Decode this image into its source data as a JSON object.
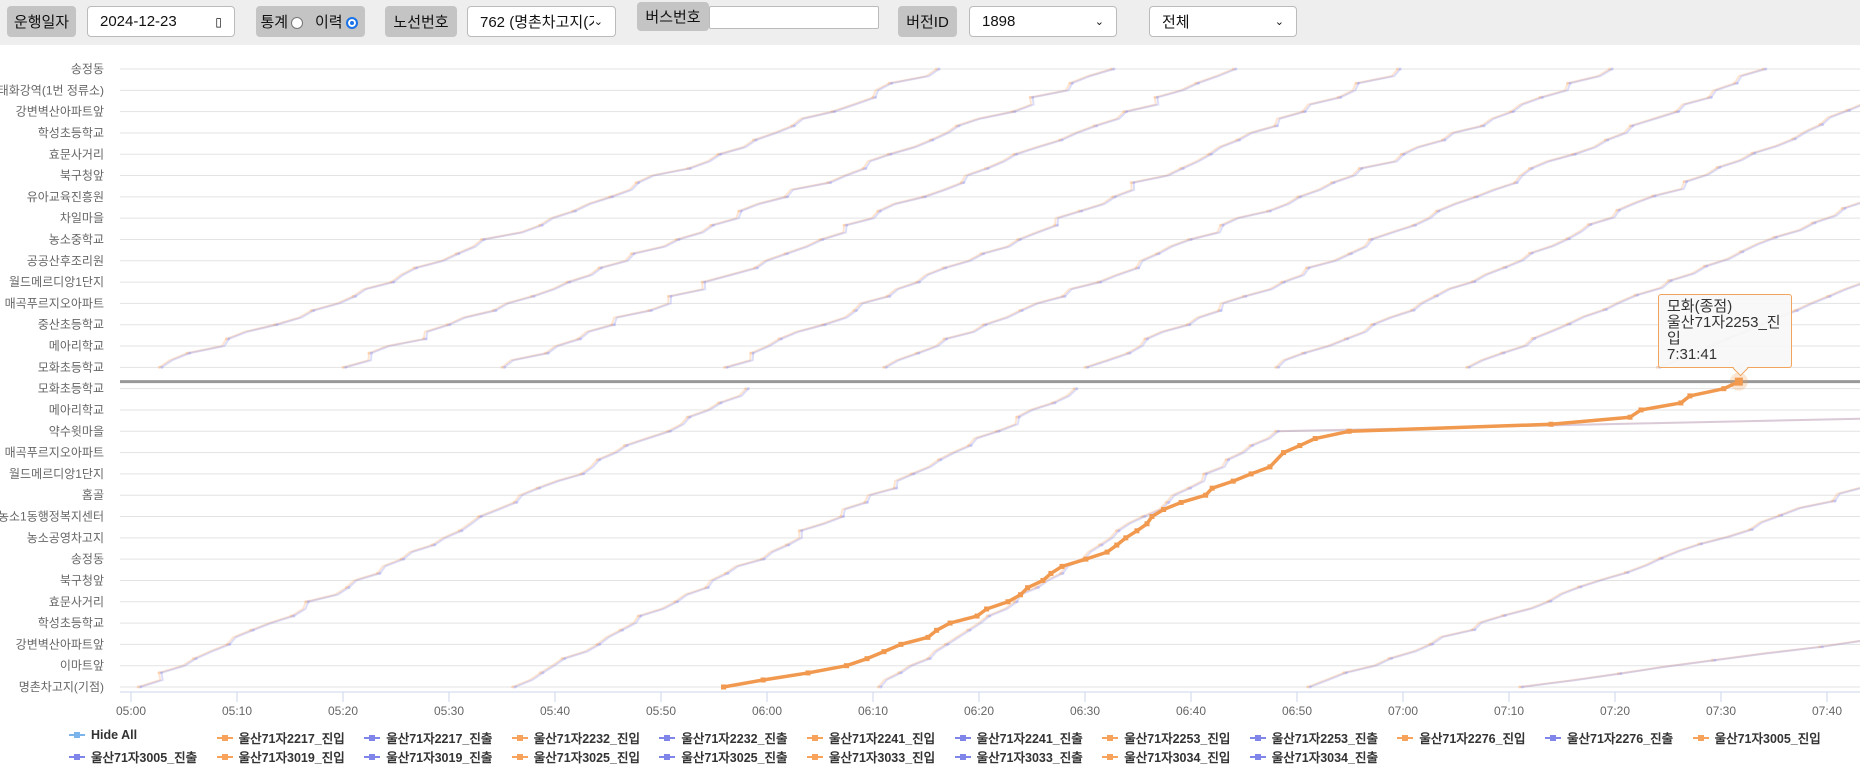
{
  "toolbar": {
    "date_label": "운행일자",
    "date_value": "2024-12-23",
    "mode_stats_label": "통계",
    "mode_history_label": "이력",
    "mode_selected": "이력",
    "route_label": "노선번호",
    "route_value": "762 (명촌차고지(기",
    "bus_label": "버스번호",
    "bus_value": "",
    "version_label": "버전ID",
    "version_value": "1898",
    "filter_value": "전체"
  },
  "tooltip": {
    "stop": "모화(종점)",
    "series": "울산71자2253_진입",
    "time": "7:31:41"
  },
  "legend": [
    {
      "label": "Hide All",
      "color": "#7cb5ec"
    },
    {
      "label": "울산71자2217_진입",
      "color": "#f7a35c"
    },
    {
      "label": "울산71자2217_진출",
      "color": "#8085e9"
    },
    {
      "label": "울산71자2232_진입",
      "color": "#f7a35c"
    },
    {
      "label": "울산71자2232_진출",
      "color": "#8085e9"
    },
    {
      "label": "울산71자2241_진입",
      "color": "#f7a35c"
    },
    {
      "label": "울산71자2241_진출",
      "color": "#8085e9"
    },
    {
      "label": "울산71자2253_진입",
      "color": "#f7a35c"
    },
    {
      "label": "울산71자2253_진출",
      "color": "#8085e9"
    },
    {
      "label": "울산71자2276_진입",
      "color": "#f7a35c"
    },
    {
      "label": "울산71자2276_진출",
      "color": "#8085e9"
    },
    {
      "label": "울산71자3005_진입",
      "color": "#f7a35c"
    },
    {
      "label": "울산71자3005_진출",
      "color": "#8085e9"
    },
    {
      "label": "울산71자3019_진입",
      "color": "#f7a35c"
    },
    {
      "label": "울산71자3019_진출",
      "color": "#8085e9"
    },
    {
      "label": "울산71자3025_진입",
      "color": "#f7a35c"
    },
    {
      "label": "울산71자3025_진출",
      "color": "#8085e9"
    },
    {
      "label": "울산71자3033_진입",
      "color": "#f7a35c"
    },
    {
      "label": "울산71자3033_진출",
      "color": "#8085e9"
    },
    {
      "label": "울산71자3034_진입",
      "color": "#f7a35c"
    },
    {
      "label": "울산71자3034_진출",
      "color": "#8085e9"
    }
  ],
  "chart_data": {
    "type": "line",
    "x_type": "time",
    "x_range": [
      "05:00",
      "07:43"
    ],
    "x_ticks": [
      "05:00",
      "05:10",
      "05:20",
      "05:30",
      "05:40",
      "05:50",
      "06:00",
      "06:10",
      "06:20",
      "06:30",
      "06:40",
      "06:50",
      "07:00",
      "07:10",
      "07:20",
      "07:30",
      "07:40"
    ],
    "y_categories": [
      "명촌차고지(기점)",
      "이마트앞",
      "강변벽산아파트앞",
      "학성초등학교",
      "효문사거리",
      "북구청앞",
      "송정동",
      "농소공영차고지",
      "농소1동행정복지센터",
      "홈골",
      "월드메르디앙1단지",
      "매곡푸르지오아파트",
      "약수윗마을",
      "메아리학교",
      "모화초등학교",
      "모화초등학교",
      "메아리학교",
      "중산초등학교",
      "매곡푸르지오아파트",
      "월드메르디앙1단지",
      "공공산후조리원",
      "농소중학교",
      "차일마을",
      "유아교육진흥원",
      "북구청앞",
      "효문사거리",
      "학성초등학교",
      "강변벽산아파트앞",
      "태화강역(1번 정류소)",
      "송정동"
    ],
    "terminal_line": {
      "label": "모화(종점)",
      "position": 14.33,
      "color": "#999999"
    },
    "grid": true,
    "colors": {
      "entry": "#f7a35c",
      "exit": "#8085e9",
      "highlight": "#f0994f"
    },
    "highlighted_series": {
      "name": "울산71자2253_진입",
      "points": [
        [
          "05:55:54",
          0
        ],
        [
          "05:59:38",
          0.33
        ],
        [
          "06:03:52",
          0.66
        ],
        [
          "06:07:30",
          1
        ],
        [
          "06:09:26",
          1.33
        ],
        [
          "06:11:02",
          1.66
        ],
        [
          "06:12:38",
          2
        ],
        [
          "06:15:11",
          2.33
        ],
        [
          "06:16:00",
          2.66
        ],
        [
          "06:17:16",
          3
        ],
        [
          "06:19:49",
          3.33
        ],
        [
          "06:20:43",
          3.66
        ],
        [
          "06:22:44",
          4
        ],
        [
          "06:23:55",
          4.33
        ],
        [
          "06:24:35",
          4.66
        ],
        [
          "06:26:02",
          5
        ],
        [
          "06:26:47",
          5.33
        ],
        [
          "06:27:50",
          5.66
        ],
        [
          "06:30:05",
          6
        ],
        [
          "06:32:05",
          6.33
        ],
        [
          "06:33:00",
          6.66
        ],
        [
          "06:33:51",
          7
        ],
        [
          "06:34:54",
          7.33
        ],
        [
          "06:35:51",
          7.66
        ],
        [
          "06:36:19",
          8
        ],
        [
          "06:37:25",
          8.33
        ],
        [
          "06:39:04",
          8.66
        ],
        [
          "06:41:23",
          9
        ],
        [
          "06:42:00",
          9.33
        ],
        [
          "06:43:59",
          9.66
        ],
        [
          "06:45:40",
          10
        ],
        [
          "06:47:27",
          10.33
        ],
        [
          "06:48:44",
          11
        ],
        [
          "06:50:16",
          11.33
        ],
        [
          "06:51:43",
          11.66
        ],
        [
          "06:54:55",
          12
        ],
        [
          "07:13:58",
          12.33
        ],
        [
          "07:21:25",
          12.66
        ],
        [
          "07:22:27",
          13
        ],
        [
          "07:26:13",
          13.33
        ],
        [
          "07:27:04",
          13.66
        ],
        [
          "07:30:16",
          14
        ],
        [
          "07:31:41",
          14.33
        ]
      ]
    },
    "background_trips": [
      {
        "from": 0,
        "to": 14,
        "start": "05:00:40",
        "end": "05:58:00"
      },
      {
        "from": 0,
        "to": 14,
        "start": "05:36:00",
        "end": "06:29:00"
      },
      {
        "from": 0,
        "to": 12,
        "start": "06:10:30",
        "end": "06:48:00",
        "tail": [
          "07:44:00",
          12.6
        ]
      },
      {
        "from": 0,
        "to": 9.4,
        "start": "06:51:00",
        "end": "07:43:30"
      },
      {
        "from": 0,
        "to": 2.2,
        "start": "07:11:00",
        "end": "07:43:30"
      },
      {
        "from": 15,
        "to": 29,
        "start": "05:02:40",
        "end": "06:16:00"
      },
      {
        "from": 15,
        "to": 29,
        "start": "05:20:00",
        "end": "06:32:30"
      },
      {
        "from": 15,
        "to": 29,
        "start": "05:35:00",
        "end": "06:44:00"
      },
      {
        "from": 15,
        "to": 29,
        "start": "05:56:00",
        "end": "06:59:30"
      },
      {
        "from": 15,
        "to": 29,
        "start": "06:11:00",
        "end": "07:19:30"
      },
      {
        "from": 15,
        "to": 29,
        "start": "06:30:00",
        "end": "07:34:00"
      },
      {
        "from": 15,
        "to": 27.4,
        "start": "06:48:00",
        "end": "07:43:30"
      },
      {
        "from": 15,
        "to": 22.8,
        "start": "07:06:00",
        "end": "07:43:30"
      },
      {
        "from": 15,
        "to": 19,
        "start": "07:24:00",
        "end": "07:43:30"
      }
    ]
  }
}
